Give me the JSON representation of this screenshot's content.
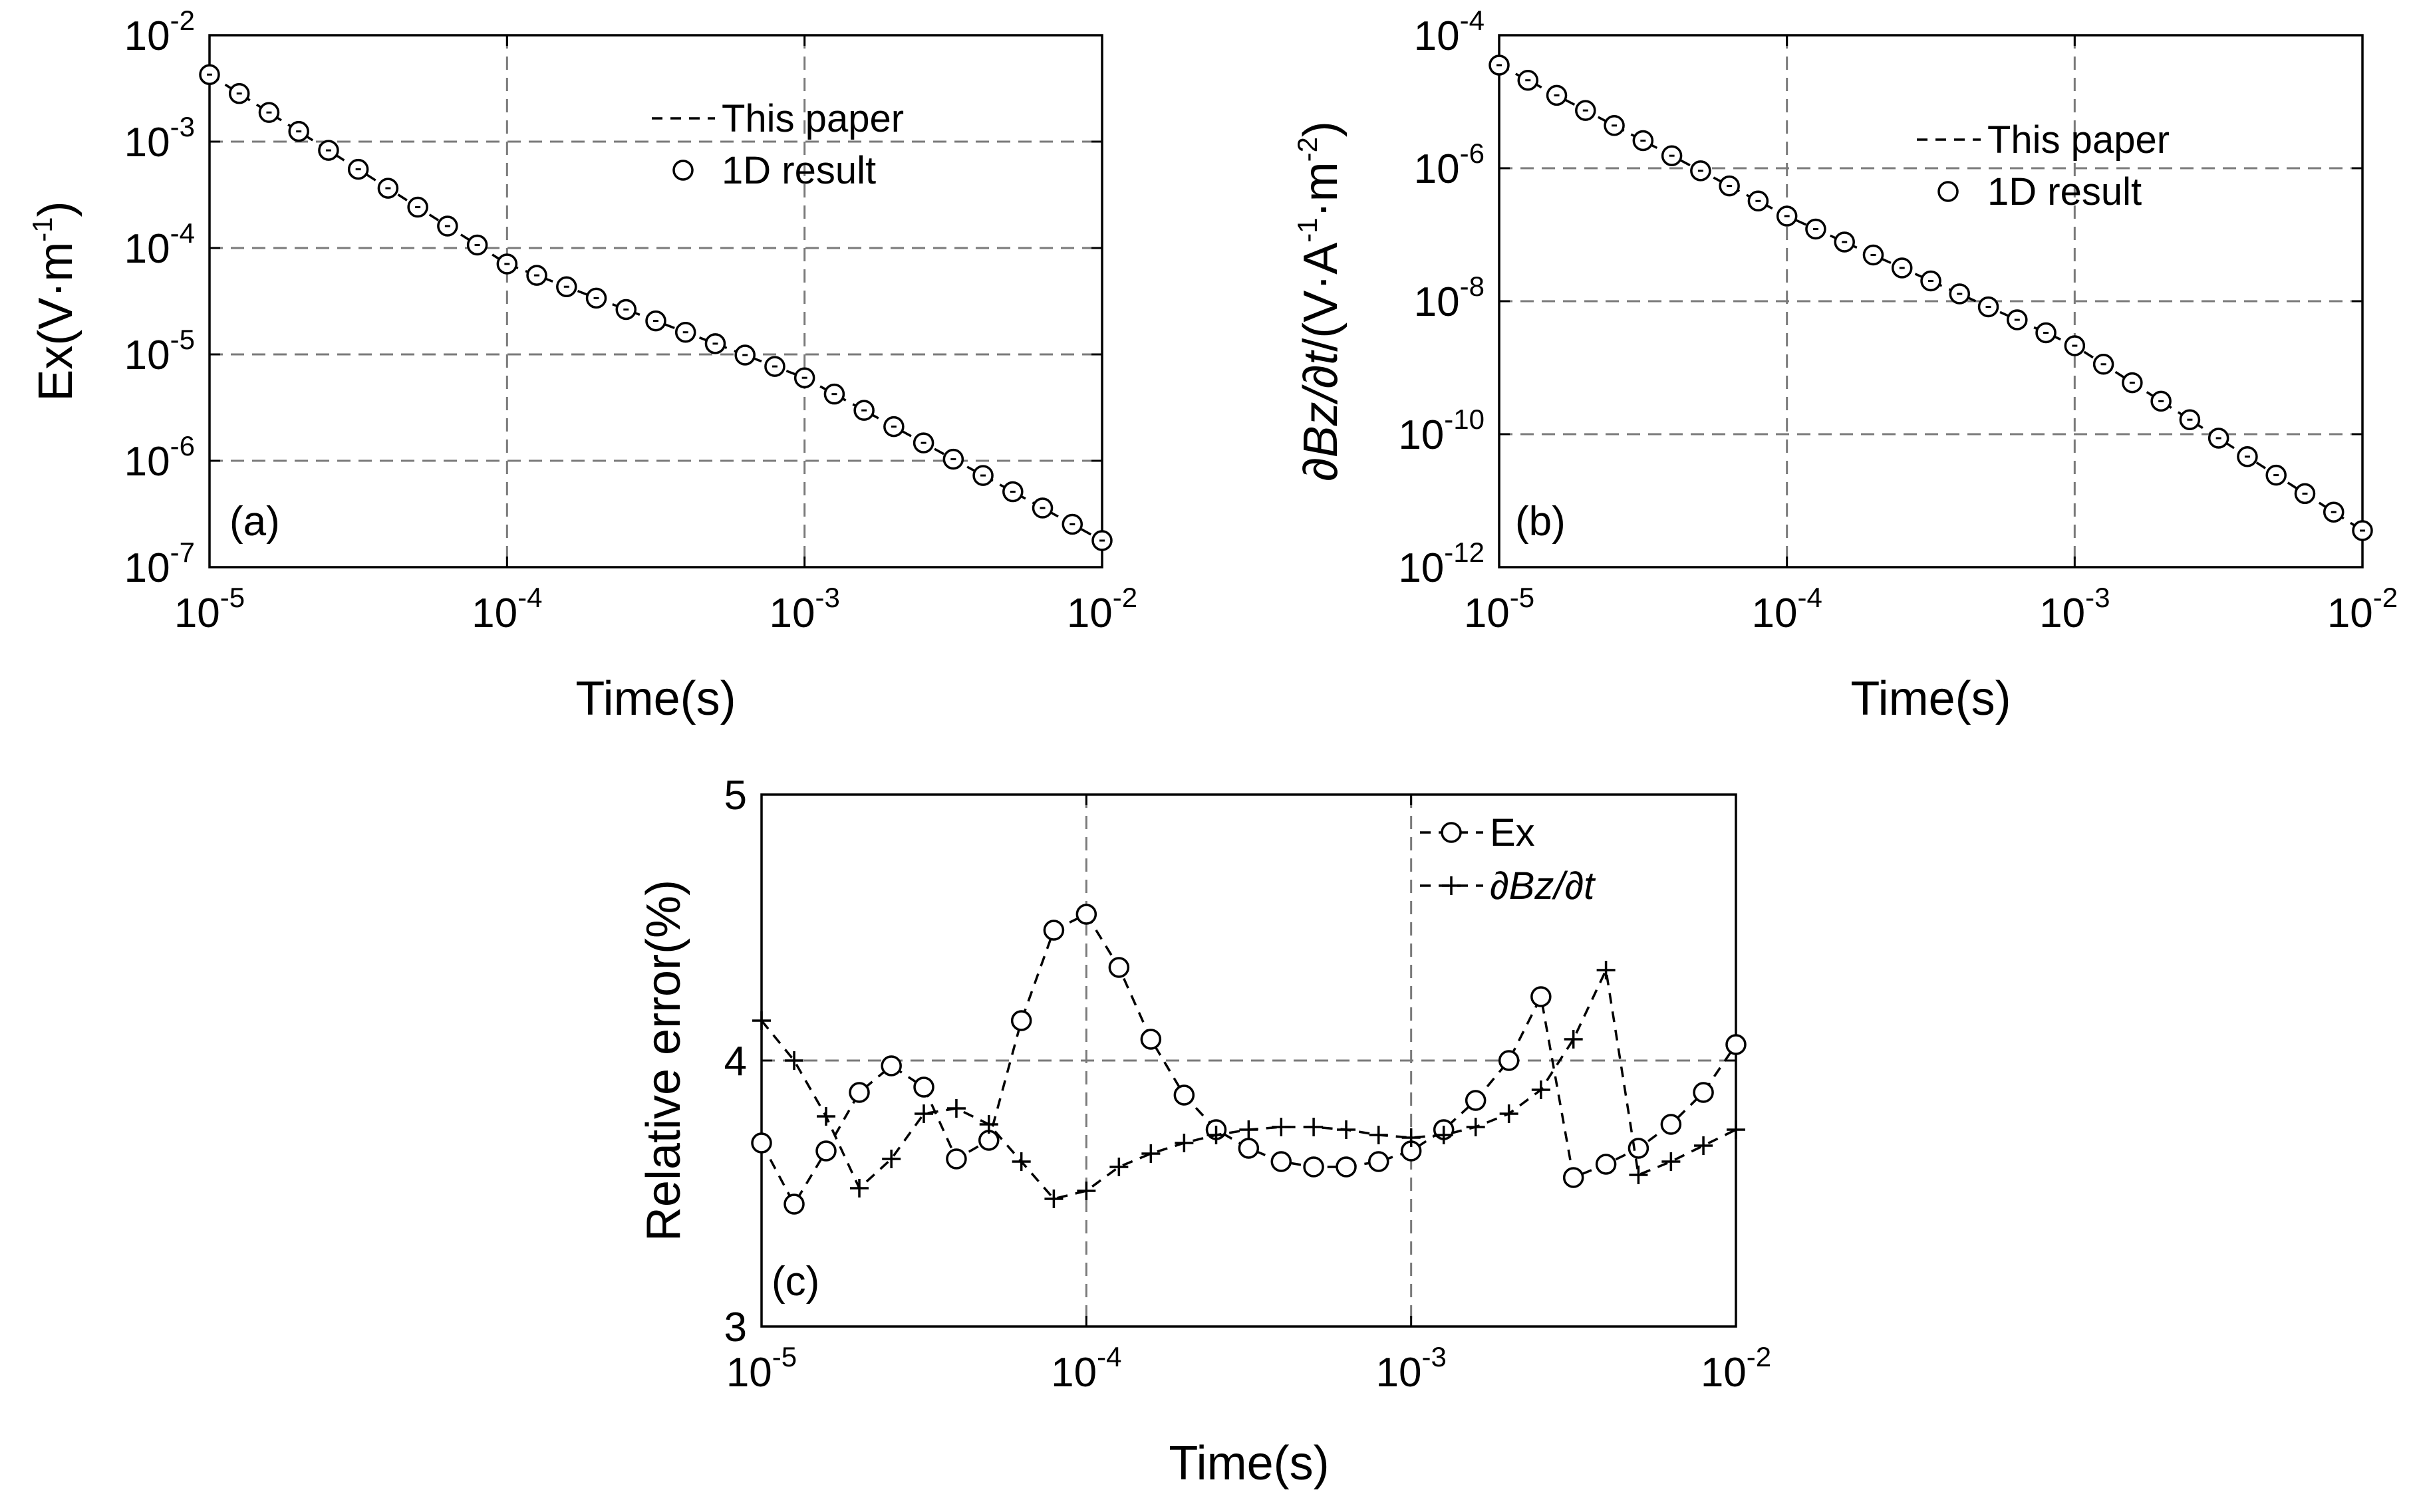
{
  "chart_data": [
    {
      "id": "a",
      "type": "scatter",
      "panel_label": "(a)",
      "xlabel": "Time(s)",
      "ylabel": "Ex(V·m",
      "ylabel_sup": "-1",
      "ylabel_tail": ")",
      "xscale": "log",
      "yscale": "log",
      "xlim": [
        1e-05,
        0.01
      ],
      "ylim": [
        1e-07,
        0.01
      ],
      "x_ticks": [
        {
          "base": "10",
          "exp": "-5",
          "v": 1e-05
        },
        {
          "base": "10",
          "exp": "-4",
          "v": 0.0001
        },
        {
          "base": "10",
          "exp": "-3",
          "v": 0.001
        },
        {
          "base": "10",
          "exp": "-2",
          "v": 0.01
        }
      ],
      "y_ticks": [
        {
          "base": "10",
          "exp": "-7",
          "v": 1e-07
        },
        {
          "base": "10",
          "exp": "-6",
          "v": 1e-06
        },
        {
          "base": "10",
          "exp": "-5",
          "v": 1e-05
        },
        {
          "base": "10",
          "exp": "-4",
          "v": 0.0001
        },
        {
          "base": "10",
          "exp": "-3",
          "v": 0.001
        },
        {
          "base": "10",
          "exp": "-2",
          "v": 0.01
        }
      ],
      "grid": true,
      "legend_position": "top-right",
      "legend": [
        "This paper",
        "1D result"
      ],
      "log_anchors": [
        [
          -5,
          -2.37
        ],
        [
          -4,
          -4.15
        ],
        [
          -3,
          -5.22
        ],
        [
          -2,
          -6.75
        ]
      ],
      "series": [
        {
          "name": "This paper",
          "style": "dashed-line",
          "n_points": 31
        },
        {
          "name": "1D result",
          "style": "circle",
          "n_points": 31
        }
      ]
    },
    {
      "id": "b",
      "type": "scatter",
      "panel_label": "(b)",
      "xlabel": "Time(s)",
      "ylabel_parts": [
        "∂Bz/∂t",
        "/(V·A",
        "-1",
        "·m",
        "-2",
        ")"
      ],
      "xscale": "log",
      "yscale": "log",
      "xlim": [
        1e-05,
        0.01
      ],
      "ylim": [
        1e-12,
        0.0001
      ],
      "x_ticks": [
        {
          "base": "10",
          "exp": "-5",
          "v": 1e-05
        },
        {
          "base": "10",
          "exp": "-4",
          "v": 0.0001
        },
        {
          "base": "10",
          "exp": "-3",
          "v": 0.001
        },
        {
          "base": "10",
          "exp": "-2",
          "v": 0.01
        }
      ],
      "y_ticks": [
        {
          "base": "10",
          "exp": "-12",
          "v": 1e-12
        },
        {
          "base": "10",
          "exp": "-10",
          "v": 1e-10
        },
        {
          "base": "10",
          "exp": "-8",
          "v": 1e-08
        },
        {
          "base": "10",
          "exp": "-6",
          "v": 1e-06
        },
        {
          "base": "10",
          "exp": "-4",
          "v": 0.0001
        }
      ],
      "grid": true,
      "legend_position": "top-right",
      "legend": [
        "This paper",
        "1D result"
      ],
      "log_anchors": [
        [
          -5,
          -4.45
        ],
        [
          -4,
          -6.72
        ],
        [
          -3,
          -8.67
        ],
        [
          -2,
          -11.45
        ]
      ],
      "series": [
        {
          "name": "This paper",
          "style": "dashed-line",
          "n_points": 31
        },
        {
          "name": "1D result",
          "style": "circle",
          "n_points": 31
        }
      ]
    },
    {
      "id": "c",
      "type": "line",
      "panel_label": "(c)",
      "xlabel": "Time(s)",
      "ylabel": "Relative error(%)",
      "xscale": "log",
      "yscale": "linear",
      "xlim": [
        1e-05,
        0.01
      ],
      "ylim": [
        3,
        5
      ],
      "x_ticks": [
        {
          "base": "10",
          "exp": "-5",
          "v": 1e-05
        },
        {
          "base": "10",
          "exp": "-4",
          "v": 0.0001
        },
        {
          "base": "10",
          "exp": "-3",
          "v": 0.001
        },
        {
          "base": "10",
          "exp": "-2",
          "v": 0.01
        }
      ],
      "y_ticks": [
        {
          "label": "3",
          "v": 3
        },
        {
          "label": "4",
          "v": 4
        },
        {
          "label": "5",
          "v": 5
        }
      ],
      "grid": true,
      "legend_position": "top-right",
      "legend": [
        "Ex",
        "∂Bz/∂t"
      ],
      "series": [
        {
          "name": "Ex",
          "style": "dashed-circle",
          "x": [
            1e-05,
            1.26e-05,
            1.58e-05,
            2e-05,
            2.51e-05,
            3.16e-05,
            3.98e-05,
            5.01e-05,
            6.31e-05,
            7.94e-05,
            0.0001,
            0.000126,
            0.000158,
            0.0002,
            0.000251,
            0.000316,
            0.000398,
            0.000501,
            0.000631,
            0.000794,
            0.001,
            0.00126,
            0.00158,
            0.002,
            0.00251,
            0.00316,
            0.00398,
            0.00501,
            0.00631,
            0.00794,
            0.01
          ],
          "y": [
            3.69,
            3.46,
            3.66,
            3.88,
            3.98,
            3.9,
            3.63,
            3.7,
            4.15,
            4.49,
            4.55,
            4.35,
            4.08,
            3.87,
            3.74,
            3.67,
            3.62,
            3.6,
            3.6,
            3.62,
            3.66,
            3.74,
            3.85,
            4.0,
            4.24,
            3.56,
            3.61,
            3.67,
            3.76,
            3.88,
            4.06
          ]
        },
        {
          "name": "∂Bz/∂t",
          "style": "dashed-plus",
          "x": [
            1e-05,
            1.26e-05,
            1.58e-05,
            2e-05,
            2.51e-05,
            3.16e-05,
            3.98e-05,
            5.01e-05,
            6.31e-05,
            7.94e-05,
            0.0001,
            0.000126,
            0.000158,
            0.0002,
            0.000251,
            0.000316,
            0.000398,
            0.000501,
            0.000631,
            0.000794,
            0.001,
            0.00126,
            0.00158,
            0.002,
            0.00251,
            0.00316,
            0.00398,
            0.00501,
            0.00631,
            0.00794,
            0.01
          ],
          "y": [
            4.15,
            4.0,
            3.79,
            3.52,
            3.63,
            3.8,
            3.82,
            3.76,
            3.62,
            3.48,
            3.51,
            3.6,
            3.65,
            3.69,
            3.72,
            3.74,
            3.75,
            3.75,
            3.74,
            3.72,
            3.71,
            3.72,
            3.75,
            3.8,
            3.89,
            4.08,
            4.34,
            3.57,
            3.62,
            3.68,
            3.74
          ]
        }
      ]
    }
  ]
}
